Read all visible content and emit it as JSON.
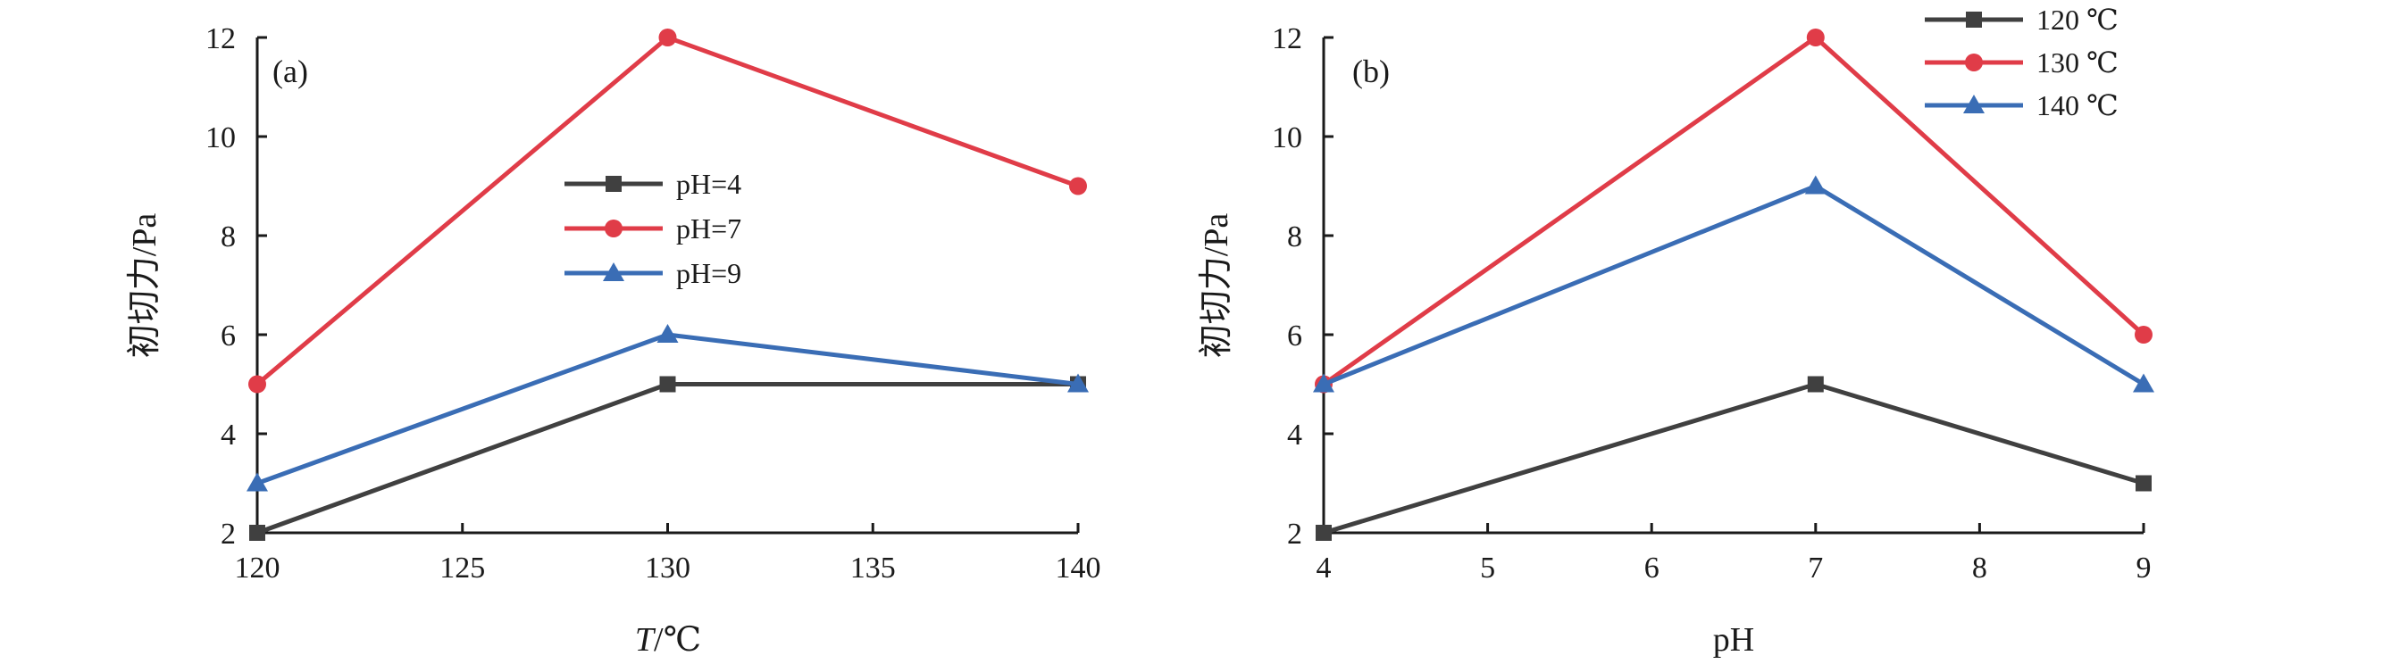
{
  "chart_data": [
    {
      "type": "line",
      "panel_label": "(a)",
      "xlabel_italic": "T",
      "xlabel_unit": "/℃",
      "ylabel": "初切力/Pa",
      "x": [
        120,
        130,
        140
      ],
      "xlim": [
        120,
        140
      ],
      "xticks": [
        120,
        125,
        130,
        135,
        140
      ],
      "ylim": [
        2,
        12
      ],
      "yticks": [
        2,
        4,
        6,
        8,
        10,
        12
      ],
      "grid": false,
      "legend_position": "center",
      "series": [
        {
          "name": "pH=4",
          "values": [
            2,
            5,
            5
          ],
          "color": "#404040",
          "marker": "square"
        },
        {
          "name": "pH=7",
          "values": [
            5,
            12,
            9
          ],
          "color": "#e03c48",
          "marker": "circle"
        },
        {
          "name": "pH=9",
          "values": [
            3,
            6,
            5
          ],
          "color": "#3a6db5",
          "marker": "triangle"
        }
      ]
    },
    {
      "type": "line",
      "panel_label": "(b)",
      "xlabel": "pH",
      "ylabel": "初切力/Pa",
      "x": [
        4,
        7,
        9
      ],
      "xlim": [
        4,
        9
      ],
      "xticks": [
        4,
        5,
        6,
        7,
        8,
        9
      ],
      "ylim": [
        2,
        12
      ],
      "yticks": [
        2,
        4,
        6,
        8,
        10,
        12
      ],
      "grid": false,
      "legend_position": "top-right",
      "series": [
        {
          "name": "120 ℃",
          "values": [
            2,
            5,
            3
          ],
          "color": "#404040",
          "marker": "square"
        },
        {
          "name": "130 ℃",
          "values": [
            5,
            12,
            6
          ],
          "color": "#e03c48",
          "marker": "circle"
        },
        {
          "name": "140 ℃",
          "values": [
            5,
            9,
            5
          ],
          "color": "#3a6db5",
          "marker": "triangle"
        }
      ]
    }
  ]
}
